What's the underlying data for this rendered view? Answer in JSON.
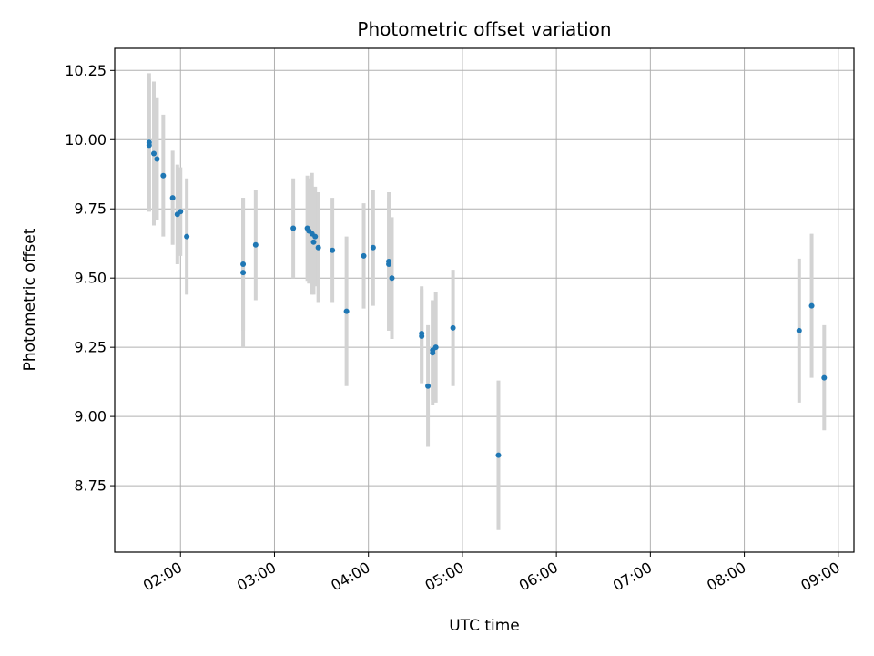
{
  "chart_data": {
    "type": "scatter",
    "title": "Photometric offset variation",
    "xlabel": "UTC time",
    "ylabel": "Photometric offset",
    "x_format": "HH:MM",
    "xlim": [
      "01:18",
      "09:10"
    ],
    "ylim": [
      8.51,
      10.33
    ],
    "x_ticks": [
      "02:00",
      "03:00",
      "04:00",
      "05:00",
      "06:00",
      "07:00",
      "08:00",
      "09:00"
    ],
    "y_ticks": [
      8.75,
      9.0,
      9.25,
      9.5,
      9.75,
      10.0,
      10.25
    ],
    "y_tick_labels": [
      "8.75",
      "9.00",
      "9.25",
      "9.50",
      "9.75",
      "10.00",
      "10.25"
    ],
    "grid": true,
    "point_color": "#1f77b4",
    "errorbar_color": "#d3d3d3",
    "points": [
      {
        "x": "01:40",
        "y": 9.99,
        "err": 0.25
      },
      {
        "x": "01:40",
        "y": 9.98,
        "err": 0.24
      },
      {
        "x": "01:43",
        "y": 9.95,
        "err": 0.26
      },
      {
        "x": "01:45",
        "y": 9.93,
        "err": 0.22
      },
      {
        "x": "01:49",
        "y": 9.87,
        "err": 0.22
      },
      {
        "x": "01:55",
        "y": 9.79,
        "err": 0.17
      },
      {
        "x": "01:58",
        "y": 9.73,
        "err": 0.18
      },
      {
        "x": "02:00",
        "y": 9.74,
        "err": 0.16
      },
      {
        "x": "02:04",
        "y": 9.65,
        "err": 0.21
      },
      {
        "x": "02:40",
        "y": 9.55,
        "err": 0.24
      },
      {
        "x": "02:40",
        "y": 9.52,
        "err": 0.27
      },
      {
        "x": "02:48",
        "y": 9.62,
        "err": 0.2
      },
      {
        "x": "03:12",
        "y": 9.68,
        "err": 0.18
      },
      {
        "x": "03:21",
        "y": 9.68,
        "err": 0.19
      },
      {
        "x": "03:22",
        "y": 9.67,
        "err": 0.19
      },
      {
        "x": "03:24",
        "y": 9.66,
        "err": 0.22
      },
      {
        "x": "03:25",
        "y": 9.63,
        "err": 0.19
      },
      {
        "x": "03:26",
        "y": 9.65,
        "err": 0.18
      },
      {
        "x": "03:28",
        "y": 9.61,
        "err": 0.2
      },
      {
        "x": "03:37",
        "y": 9.6,
        "err": 0.19
      },
      {
        "x": "03:46",
        "y": 9.38,
        "err": 0.27
      },
      {
        "x": "03:57",
        "y": 9.58,
        "err": 0.19
      },
      {
        "x": "04:03",
        "y": 9.61,
        "err": 0.21
      },
      {
        "x": "04:13",
        "y": 9.56,
        "err": 0.25
      },
      {
        "x": "04:13",
        "y": 9.55,
        "err": 0.24
      },
      {
        "x": "04:15",
        "y": 9.5,
        "err": 0.22
      },
      {
        "x": "04:34",
        "y": 9.3,
        "err": 0.17
      },
      {
        "x": "04:34",
        "y": 9.29,
        "err": 0.17
      },
      {
        "x": "04:38",
        "y": 9.11,
        "err": 0.22
      },
      {
        "x": "04:41",
        "y": 9.24,
        "err": 0.18
      },
      {
        "x": "04:41",
        "y": 9.23,
        "err": 0.19
      },
      {
        "x": "04:43",
        "y": 9.25,
        "err": 0.2
      },
      {
        "x": "04:54",
        "y": 9.32,
        "err": 0.21
      },
      {
        "x": "05:23",
        "y": 8.86,
        "err": 0.27
      },
      {
        "x": "08:35",
        "y": 9.31,
        "err": 0.26
      },
      {
        "x": "08:43",
        "y": 9.4,
        "err": 0.26
      },
      {
        "x": "08:51",
        "y": 9.14,
        "err": 0.19
      }
    ]
  }
}
